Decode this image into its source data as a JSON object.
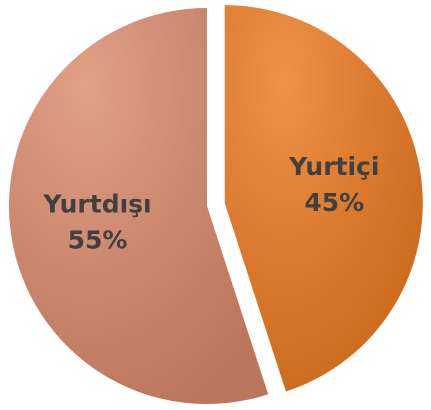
{
  "chart_data": {
    "type": "pie",
    "categories": [
      "Yurtiçi",
      "Yurtdışı"
    ],
    "values": [
      45,
      55
    ],
    "value_labels": [
      "45%",
      "55%"
    ],
    "colors": [
      "#ee7a1f",
      "#dc8b6c"
    ],
    "exploded": [
      true,
      false
    ]
  }
}
